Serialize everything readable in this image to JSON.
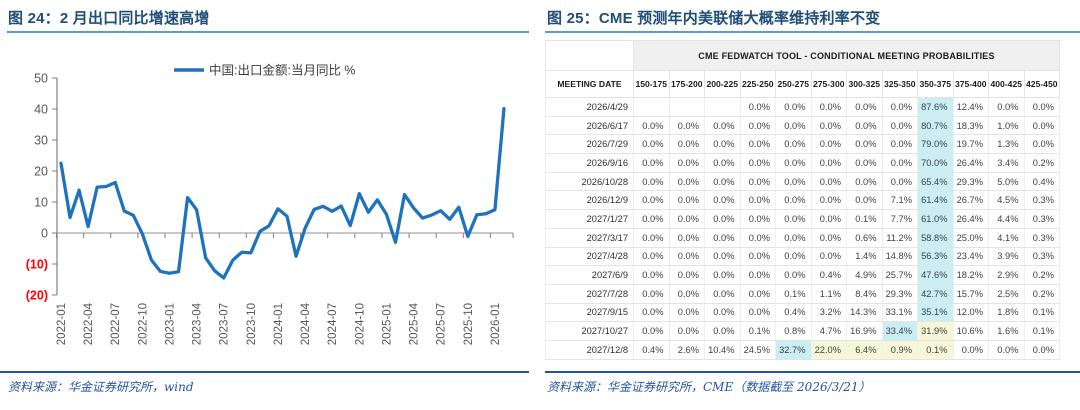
{
  "left_panel": {
    "title": "图 24：2 月出口同比增速高增",
    "source": "资料来源：华金证券研究所，wind"
  },
  "right_panel": {
    "title": "图 25：CME 预测年内美联储大概率维持利率不变",
    "source": "资料来源：华金证券研究所，CME（数据截至 2026/3/21）"
  },
  "colors": {
    "title": "#1f4e79",
    "title_underline": "#5b9bd5",
    "source_blue": "#2353a3",
    "chart_line": "#1e73bc",
    "axis_gray": "#7f7f7f",
    "label_gray": "#595959",
    "negative_red": "#ff0000",
    "highlight_cyan": "#c9eef3",
    "highlight_yellow": "#f6f6d8",
    "table_header_bg": "#f0f0f0"
  },
  "chart_data": [
    {
      "type": "line",
      "title": "图 24：2 月出口同比增速高增",
      "legend": "中国:出口金额:当月同比 %",
      "legend_position": "top-center",
      "ylim": [
        -20,
        50
      ],
      "y_ticks": [
        50,
        40,
        30,
        20,
        10,
        0,
        -10,
        -20
      ],
      "y_tick_labels": [
        "50",
        "40",
        "30",
        "20",
        "10",
        "0",
        "(10)",
        "(20)"
      ],
      "x_tick_labels": [
        "2022-01",
        "2022-04",
        "2022-07",
        "2022-10",
        "2023-01",
        "2023-04",
        "2023-07",
        "2023-10",
        "2024-01",
        "2024-04",
        "2024-07",
        "2024-10",
        "2025-01",
        "2025-04",
        "2025-07",
        "2025-10",
        "2026-01"
      ],
      "x": [
        "2022-01",
        "2022-02",
        "2022-03",
        "2022-04",
        "2022-05",
        "2022-06",
        "2022-07",
        "2022-08",
        "2022-09",
        "2022-10",
        "2022-11",
        "2022-12",
        "2023-01",
        "2023-02",
        "2023-03",
        "2023-04",
        "2023-05",
        "2023-06",
        "2023-07",
        "2023-08",
        "2023-09",
        "2023-10",
        "2023-11",
        "2023-12",
        "2024-01",
        "2024-02",
        "2024-03",
        "2024-04",
        "2024-05",
        "2024-06",
        "2024-07",
        "2024-08",
        "2024-09",
        "2024-10",
        "2024-11",
        "2024-12",
        "2025-01",
        "2025-02",
        "2025-03",
        "2025-04",
        "2025-05",
        "2025-06",
        "2025-07",
        "2025-08",
        "2025-09",
        "2025-10",
        "2025-11",
        "2025-12",
        "2026-01",
        "2026-02"
      ],
      "series": [
        {
          "name": "中国:出口金额:当月同比 %",
          "values": [
            22.5,
            5.0,
            13.8,
            2.1,
            14.8,
            15.0,
            16.3,
            7.1,
            5.7,
            -0.3,
            -8.7,
            -12.4,
            -13.0,
            -12.5,
            11.4,
            7.5,
            -8.0,
            -12.2,
            -14.5,
            -8.8,
            -6.2,
            -6.4,
            0.5,
            2.3,
            7.8,
            5.4,
            -7.5,
            1.5,
            7.6,
            8.6,
            7.0,
            8.7,
            2.4,
            12.7,
            6.7,
            10.7,
            6.0,
            -3.0,
            12.4,
            8.1,
            4.8,
            5.8,
            7.2,
            4.4,
            8.3,
            -1.1,
            5.9,
            6.2,
            7.5,
            40.1
          ]
        }
      ],
      "grid": "zero-line-only",
      "negative_labels_in_red_parentheses": true
    },
    {
      "type": "table",
      "title": "CME FEDWATCH TOOL - CONDITIONAL MEETING PROBABILITIES",
      "date_header": "MEETING DATE",
      "columns": [
        "150-175",
        "175-200",
        "200-225",
        "225-250",
        "250-275",
        "275-300",
        "300-325",
        "325-350",
        "350-375",
        "375-400",
        "400-425",
        "425-450"
      ],
      "highlight_legend": {
        "c": "max probability (cyan)",
        "y": "secondary (yellow)"
      },
      "rows": [
        {
          "date": "2026/4/29",
          "values": [
            "",
            "",
            "",
            "0.0%",
            "0.0%",
            "0.0%",
            "0.0%",
            "0.0%",
            "87.6%",
            "12.4%",
            "0.0%",
            "0.0%"
          ],
          "hl": [
            "",
            "",
            "",
            "",
            "",
            "",
            "",
            "",
            "c",
            "",
            "",
            ""
          ]
        },
        {
          "date": "2026/6/17",
          "values": [
            "0.0%",
            "0.0%",
            "0.0%",
            "0.0%",
            "0.0%",
            "0.0%",
            "0.0%",
            "0.0%",
            "80.7%",
            "18.3%",
            "1.0%",
            "0.0%"
          ],
          "hl": [
            "",
            "",
            "",
            "",
            "",
            "",
            "",
            "",
            "c",
            "",
            "",
            ""
          ]
        },
        {
          "date": "2026/7/29",
          "values": [
            "0.0%",
            "0.0%",
            "0.0%",
            "0.0%",
            "0.0%",
            "0.0%",
            "0.0%",
            "0.0%",
            "79.0%",
            "19.7%",
            "1.3%",
            "0.0%"
          ],
          "hl": [
            "",
            "",
            "",
            "",
            "",
            "",
            "",
            "",
            "c",
            "",
            "",
            ""
          ]
        },
        {
          "date": "2026/9/16",
          "values": [
            "0.0%",
            "0.0%",
            "0.0%",
            "0.0%",
            "0.0%",
            "0.0%",
            "0.0%",
            "0.0%",
            "70.0%",
            "26.4%",
            "3.4%",
            "0.2%"
          ],
          "hl": [
            "",
            "",
            "",
            "",
            "",
            "",
            "",
            "",
            "c",
            "",
            "",
            ""
          ]
        },
        {
          "date": "2026/10/28",
          "values": [
            "0.0%",
            "0.0%",
            "0.0%",
            "0.0%",
            "0.0%",
            "0.0%",
            "0.0%",
            "0.0%",
            "65.4%",
            "29.3%",
            "5.0%",
            "0.4%"
          ],
          "hl": [
            "",
            "",
            "",
            "",
            "",
            "",
            "",
            "",
            "c",
            "",
            "",
            ""
          ]
        },
        {
          "date": "2026/12/9",
          "values": [
            "0.0%",
            "0.0%",
            "0.0%",
            "0.0%",
            "0.0%",
            "0.0%",
            "0.0%",
            "7.1%",
            "61.4%",
            "26.7%",
            "4.5%",
            "0.3%"
          ],
          "hl": [
            "",
            "",
            "",
            "",
            "",
            "",
            "",
            "",
            "c",
            "",
            "",
            ""
          ]
        },
        {
          "date": "2027/1/27",
          "values": [
            "0.0%",
            "0.0%",
            "0.0%",
            "0.0%",
            "0.0%",
            "0.0%",
            "0.1%",
            "7.7%",
            "61.0%",
            "26.4%",
            "4.4%",
            "0.3%"
          ],
          "hl": [
            "",
            "",
            "",
            "",
            "",
            "",
            "",
            "",
            "c",
            "",
            "",
            ""
          ]
        },
        {
          "date": "2027/3/17",
          "values": [
            "0.0%",
            "0.0%",
            "0.0%",
            "0.0%",
            "0.0%",
            "0.0%",
            "0.6%",
            "11.2%",
            "58.8%",
            "25.0%",
            "4.1%",
            "0.3%"
          ],
          "hl": [
            "",
            "",
            "",
            "",
            "",
            "",
            "",
            "",
            "c",
            "",
            "",
            ""
          ]
        },
        {
          "date": "2027/4/28",
          "values": [
            "0.0%",
            "0.0%",
            "0.0%",
            "0.0%",
            "0.0%",
            "0.0%",
            "1.4%",
            "14.8%",
            "56.3%",
            "23.4%",
            "3.9%",
            "0.3%"
          ],
          "hl": [
            "",
            "",
            "",
            "",
            "",
            "",
            "",
            "",
            "c",
            "",
            "",
            ""
          ]
        },
        {
          "date": "2027/6/9",
          "values": [
            "0.0%",
            "0.0%",
            "0.0%",
            "0.0%",
            "0.0%",
            "0.4%",
            "4.9%",
            "25.7%",
            "47.6%",
            "18.2%",
            "2.9%",
            "0.2%"
          ],
          "hl": [
            "",
            "",
            "",
            "",
            "",
            "",
            "",
            "",
            "c",
            "",
            "",
            ""
          ]
        },
        {
          "date": "2027/7/28",
          "values": [
            "0.0%",
            "0.0%",
            "0.0%",
            "0.0%",
            "0.1%",
            "1.1%",
            "8.4%",
            "29.3%",
            "42.7%",
            "15.7%",
            "2.5%",
            "0.2%"
          ],
          "hl": [
            "",
            "",
            "",
            "",
            "",
            "",
            "",
            "",
            "c",
            "",
            "",
            ""
          ]
        },
        {
          "date": "2027/9/15",
          "values": [
            "0.0%",
            "0.0%",
            "0.0%",
            "0.0%",
            "0.4%",
            "3.2%",
            "14.3%",
            "33.1%",
            "35.1%",
            "12.0%",
            "1.8%",
            "0.1%"
          ],
          "hl": [
            "",
            "",
            "",
            "",
            "",
            "",
            "",
            "",
            "c",
            "",
            "",
            ""
          ]
        },
        {
          "date": "2027/10/27",
          "values": [
            "0.0%",
            "0.0%",
            "0.0%",
            "0.1%",
            "0.8%",
            "4.7%",
            "16.9%",
            "33.4%",
            "31.9%",
            "10.6%",
            "1.6%",
            "0.1%"
          ],
          "hl": [
            "",
            "",
            "",
            "",
            "",
            "",
            "",
            "c",
            "y",
            "",
            "",
            ""
          ]
        },
        {
          "date": "2027/12/8",
          "values": [
            "0.4%",
            "2.6%",
            "10.4%",
            "24.5%",
            "32.7%",
            "22.0%",
            "6.4%",
            "0.9%",
            "0.1%",
            "0.0%",
            "0.0%",
            "0.0%"
          ],
          "hl": [
            "",
            "",
            "",
            "",
            "c",
            "y",
            "y",
            "y",
            "y",
            "",
            "",
            ""
          ]
        }
      ]
    }
  ]
}
